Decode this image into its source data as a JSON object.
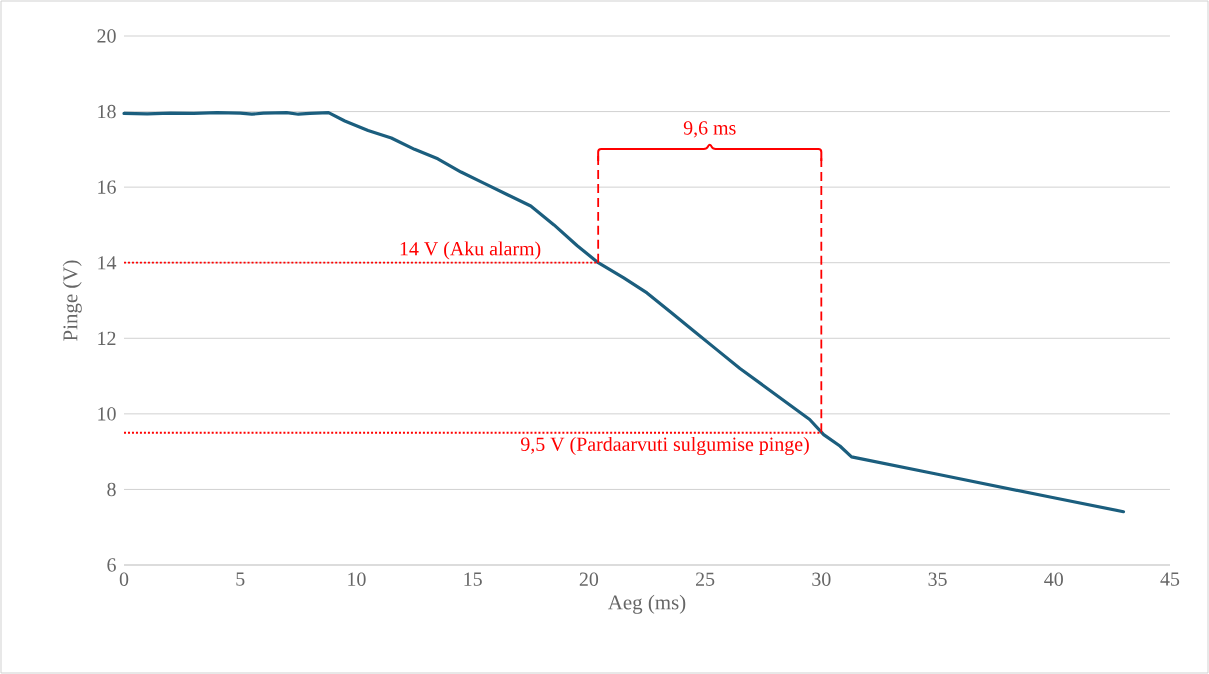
{
  "chart_data": {
    "type": "line",
    "xlabel": "Aeg (ms)",
    "ylabel": "Pinge (V)",
    "x": [
      0,
      1,
      2,
      3,
      4,
      5,
      5.5,
      6,
      7,
      7.5,
      8,
      8.8,
      9.5,
      10.5,
      11.5,
      12.5,
      13.5,
      14.5,
      15.5,
      16.5,
      17.5,
      18.5,
      19.5,
      20.4,
      21.5,
      22.5,
      23.5,
      24.5,
      25.5,
      26.5,
      27.5,
      28.5,
      29.5,
      30.1,
      30.8,
      31.3,
      35,
      40,
      43
    ],
    "values": [
      17.95,
      17.94,
      17.96,
      17.95,
      17.97,
      17.96,
      17.93,
      17.96,
      17.97,
      17.93,
      17.95,
      17.97,
      17.75,
      17.5,
      17.3,
      17.0,
      16.75,
      16.4,
      16.1,
      15.8,
      15.5,
      15.0,
      14.45,
      14.0,
      13.6,
      13.2,
      12.7,
      12.2,
      11.7,
      11.2,
      10.75,
      10.3,
      9.85,
      9.45,
      9.15,
      8.86,
      8.4,
      7.78,
      7.41
    ],
    "color": "#1b5e7e",
    "marker": "none",
    "line_style": "solid",
    "grid": "y",
    "xlim": [
      0,
      45
    ],
    "xticks": [
      0,
      5,
      10,
      15,
      20,
      25,
      30,
      35,
      40,
      45
    ],
    "ylim": [
      6,
      20
    ],
    "yticks": [
      6,
      8,
      10,
      12,
      14,
      16,
      18,
      20
    ],
    "ref_lines": [
      {
        "axis": "y",
        "value": 14,
        "label": "14 V (Aku alarm)",
        "color": "#ff0000",
        "line_style": "dotted"
      },
      {
        "axis": "y",
        "value": 9.5,
        "label": "9,5 V (Pardaarvuti sulgumise pinge)",
        "color": "#ff0000",
        "line_style": "dotted"
      },
      {
        "axis": "x",
        "value": 20.4,
        "color": "#ff0000",
        "line_style": "dashed"
      },
      {
        "axis": "x",
        "value": 30,
        "color": "#ff0000",
        "line_style": "dashed"
      }
    ],
    "annotations": [
      "9,6 ms"
    ]
  }
}
